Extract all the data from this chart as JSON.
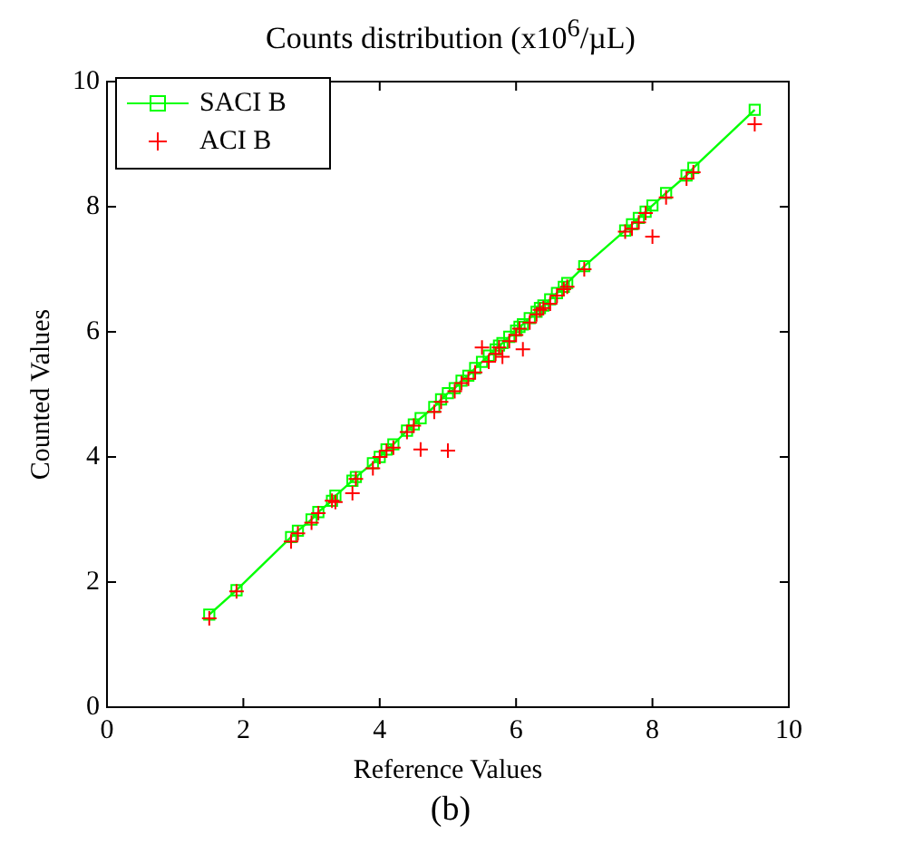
{
  "chart_data": {
    "type": "scatter",
    "title": "Counts distribution (x10$^{6}$/µL)",
    "xlabel": "Reference Values",
    "ylabel": "Counted Values",
    "annotations": [
      "(b)"
    ],
    "xlim": [
      0,
      10
    ],
    "ylim": [
      0,
      10
    ],
    "xticks": [
      0,
      2,
      4,
      6,
      8,
      10
    ],
    "yticks": [
      0,
      2,
      4,
      6,
      8,
      10
    ],
    "grid": false,
    "legend": "top left",
    "series": [
      {
        "name": "SACI B",
        "type": "line",
        "marker": "square",
        "line_style": "solid",
        "color": "#00ff00",
        "x": [
          1.5,
          1.9,
          2.7,
          2.8,
          3.0,
          3.1,
          3.3,
          3.35,
          3.6,
          3.65,
          3.9,
          4.0,
          4.1,
          4.2,
          4.4,
          4.5,
          4.6,
          4.8,
          4.9,
          5.0,
          5.1,
          5.2,
          5.3,
          5.4,
          5.5,
          5.6,
          5.7,
          5.75,
          5.8,
          5.9,
          6.0,
          6.05,
          6.1,
          6.2,
          6.3,
          6.35,
          6.4,
          6.5,
          6.6,
          6.7,
          6.75,
          7.0,
          7.6,
          7.7,
          7.8,
          7.9,
          8.0,
          8.2,
          8.5,
          8.6,
          9.5
        ],
        "values": [
          1.48,
          1.87,
          2.72,
          2.82,
          3.0,
          3.12,
          3.3,
          3.38,
          3.62,
          3.68,
          3.9,
          4.0,
          4.12,
          4.2,
          4.42,
          4.52,
          4.62,
          4.8,
          4.92,
          5.02,
          5.1,
          5.22,
          5.3,
          5.42,
          5.52,
          5.62,
          5.72,
          5.78,
          5.82,
          5.92,
          6.02,
          6.08,
          6.12,
          6.22,
          6.32,
          6.38,
          6.42,
          6.52,
          6.62,
          6.72,
          6.78,
          7.05,
          7.62,
          7.72,
          7.82,
          7.92,
          8.02,
          8.22,
          8.5,
          8.62,
          9.55
        ]
      },
      {
        "name": "ACI B",
        "type": "scatter",
        "marker": "cross",
        "color": "#ff0000",
        "x": [
          1.5,
          1.9,
          2.7,
          2.8,
          3.0,
          3.1,
          3.3,
          3.35,
          3.6,
          3.65,
          3.9,
          4.0,
          4.1,
          4.2,
          4.4,
          4.5,
          4.6,
          4.8,
          4.9,
          5.0,
          5.1,
          5.2,
          5.3,
          5.4,
          5.5,
          5.6,
          5.7,
          5.75,
          5.8,
          5.9,
          6.0,
          6.05,
          6.1,
          6.2,
          6.3,
          6.35,
          6.4,
          6.5,
          6.6,
          6.7,
          6.75,
          7.0,
          7.6,
          7.7,
          7.8,
          7.9,
          8.0,
          8.2,
          8.5,
          8.6,
          9.5
        ],
        "values": [
          1.42,
          1.85,
          2.65,
          2.78,
          2.95,
          3.1,
          3.3,
          3.28,
          3.42,
          3.65,
          3.82,
          4.0,
          4.1,
          4.15,
          4.4,
          4.5,
          4.12,
          4.72,
          4.88,
          4.1,
          5.05,
          5.18,
          5.25,
          5.35,
          5.75,
          5.52,
          5.65,
          5.75,
          5.6,
          5.85,
          5.95,
          6.05,
          5.72,
          6.15,
          6.28,
          6.35,
          6.38,
          6.45,
          6.58,
          6.68,
          6.72,
          7.0,
          7.6,
          7.65,
          7.75,
          7.9,
          7.52,
          8.15,
          8.45,
          8.55,
          9.32
        ]
      }
    ]
  }
}
